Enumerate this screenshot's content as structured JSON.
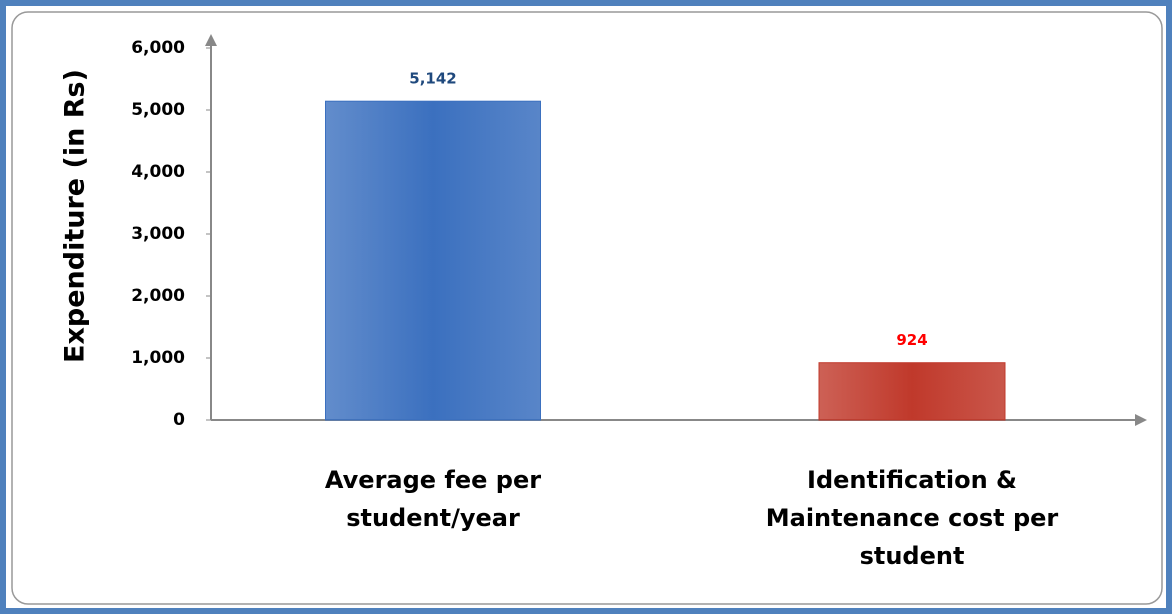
{
  "chart_data": {
    "type": "bar",
    "y_label": "Expenditure (in Rs)",
    "categories": [
      "Average fee per student/year",
      "Identification & Maintenance cost per student"
    ],
    "values": [
      5142,
      924
    ],
    "value_labels": [
      "5,142",
      "924"
    ],
    "colors": [
      "#3b70bf",
      "#c0392b"
    ],
    "label_colors": [
      "#1f497d",
      "#ff0000"
    ],
    "ylim": [
      0,
      6000
    ],
    "yticks": [
      0,
      {
        "value": 1000,
        "label": "1,000"
      },
      {
        "value": 2000,
        "label": "2,000"
      },
      {
        "value": 3000,
        "label": "3,000"
      },
      {
        "value": 4000,
        "label": "4,000"
      },
      {
        "value": 5000,
        "label": "5,000"
      },
      {
        "value": 6000,
        "label": "6,000"
      }
    ],
    "grid": false
  }
}
